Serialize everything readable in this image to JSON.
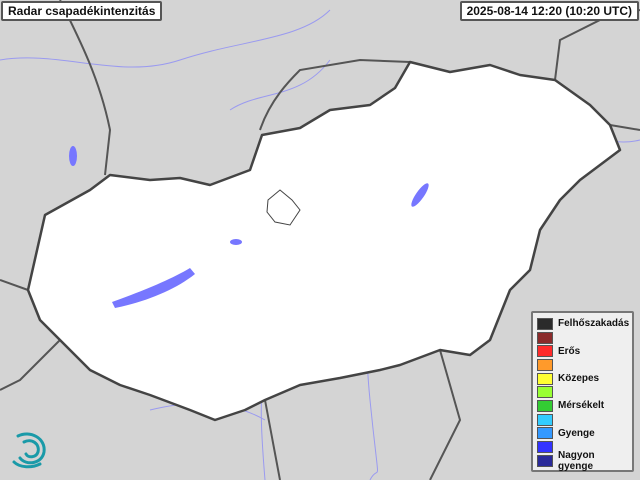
{
  "title": "Radar csapadékintenzitás",
  "timestamp": "2025-08-14 12:20 (10:20 UTC)",
  "legend": [
    {
      "label": "Felhőszakadás",
      "color": "#2b2b2b"
    },
    {
      "label": "",
      "color": "#8b2b2b"
    },
    {
      "label": "Erős",
      "color": "#ff2b2b"
    },
    {
      "label": "",
      "color": "#ff9a2b"
    },
    {
      "label": "Közepes",
      "color": "#ffff33"
    },
    {
      "label": "",
      "color": "#99ff33"
    },
    {
      "label": "Mérsékelt",
      "color": "#33cc33"
    },
    {
      "label": "",
      "color": "#33ccff"
    },
    {
      "label": "Gyenge",
      "color": "#3399ff"
    },
    {
      "label": "",
      "color": "#3333ff"
    },
    {
      "label": "Nagyon gyenge",
      "color": "#2b2b99"
    }
  ],
  "colors": {
    "country_fill": "#ffffff",
    "surroundings": "#d4d4d4",
    "border": "#444444",
    "water": "#7777ff",
    "logo": "#1a9aa8"
  }
}
